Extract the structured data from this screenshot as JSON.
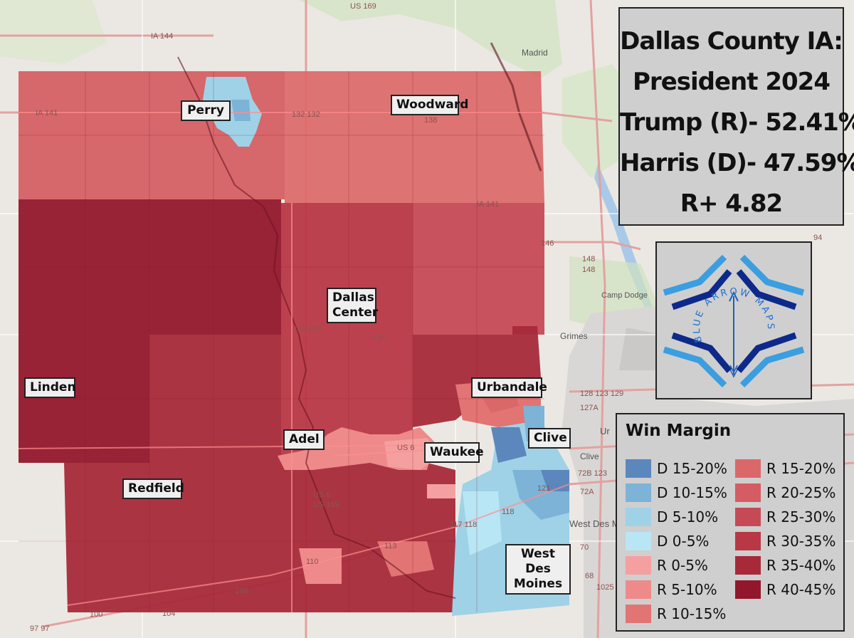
{
  "title": {
    "line1": "Dallas County IA:",
    "line2": "President 2024",
    "line3": "Trump (R)- 52.41%",
    "line4": "Harris (D)- 47.59%",
    "line5": "R+ 4.82"
  },
  "logo": {
    "text": "BLUE ARROW MAPS"
  },
  "towns": {
    "perry": "Perry",
    "woodward": "Woodward",
    "dallas_center_1": "Dallas",
    "dallas_center_2": "Center",
    "linden": "Linden",
    "urbandale": "Urbandale",
    "adel": "Adel",
    "waukee": "Waukee",
    "clive": "Clive",
    "redfield": "Redfield",
    "wdm_1": "West Des",
    "wdm_2": "Moines"
  },
  "basemap_labels": {
    "madrid": "Madrid",
    "camp_dodge": "Camp Dodge",
    "grimes": "Grimes",
    "clive": "Clive",
    "ur": "Ur",
    "west_des": "West Des M",
    "us169_top": "US 169",
    "ia144": "IA 144",
    "ia141_w": "IA 141",
    "ia141_e": "IA 141",
    "num_132": "132 132",
    "num_138": "138",
    "us169_mid": "US 169",
    "ia44": "IA 44",
    "us6": "US 6",
    "us6_us169_a": "US 6",
    "us6_us169_b": "US 169",
    "n146": "146",
    "n148": "148",
    "n148b": "148",
    "n94": "94",
    "n128": "128 123 129",
    "n127a": "127A",
    "n121": "121",
    "n118": "118",
    "n117": "117 118",
    "n113": "113",
    "n110": "110",
    "n106": "106",
    "n104": "104",
    "n100": "100",
    "n97": "97 97",
    "n72b": "72B 123",
    "n72a": "72A",
    "n70": "70",
    "n68": "68",
    "n102": "1025"
  },
  "legend": {
    "title": "Win Margin",
    "items": [
      {
        "label": "D 15-20%",
        "color": "#5b87bd"
      },
      {
        "label": "D 10-15%",
        "color": "#7cb3d6"
      },
      {
        "label": "D 5-10%",
        "color": "#9fd2e6"
      },
      {
        "label": "D 0-5%",
        "color": "#b8e6f4"
      },
      {
        "label": "R 0-5%",
        "color": "#f4a0a0"
      },
      {
        "label": "R 5-10%",
        "color": "#ee8a8a"
      },
      {
        "label": "R 10-15%",
        "color": "#e27474"
      },
      {
        "label": "R 15-20%",
        "color": "#db6868"
      },
      {
        "label": "R 20-25%",
        "color": "#d45c62"
      },
      {
        "label": "R 25-30%",
        "color": "#c64a56"
      },
      {
        "label": "R 30-35%",
        "color": "#b93846"
      },
      {
        "label": "R 35-40%",
        "color": "#a82a3a"
      },
      {
        "label": "R 40-45%",
        "color": "#93172c"
      }
    ]
  }
}
